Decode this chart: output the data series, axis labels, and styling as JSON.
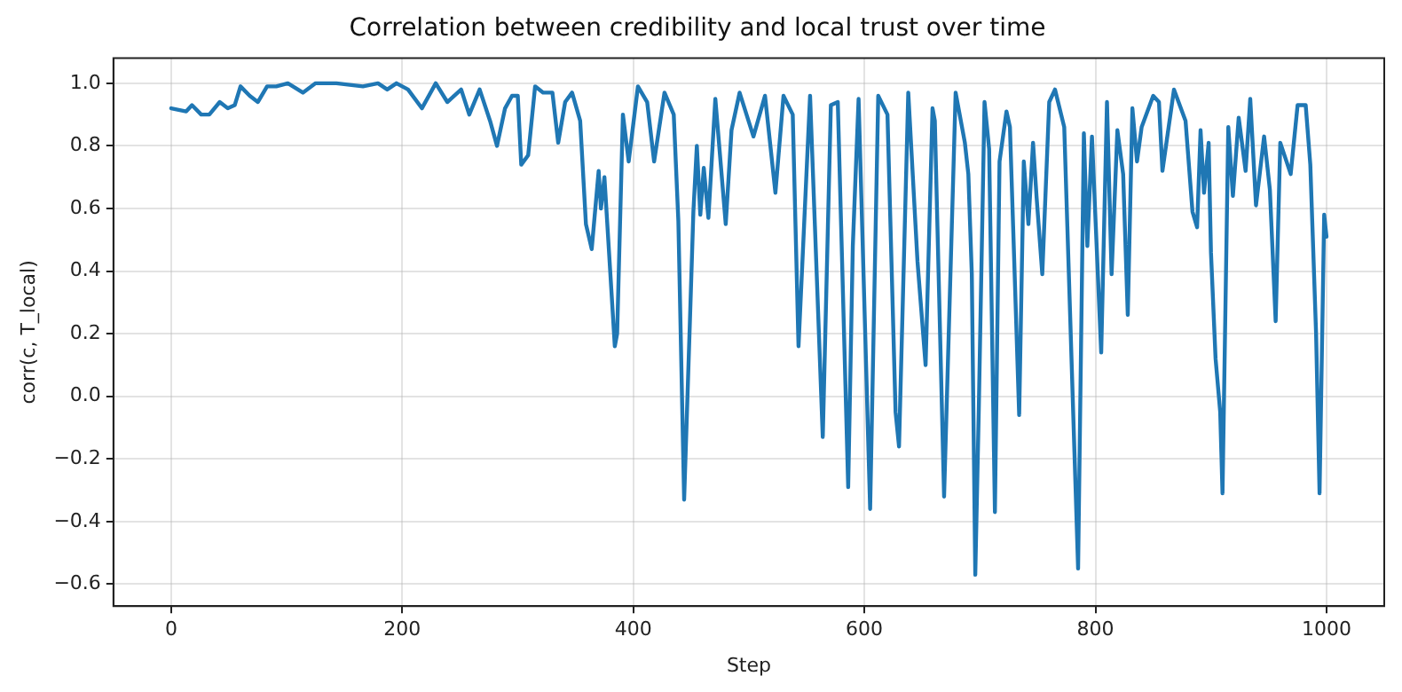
{
  "chart_data": {
    "type": "line",
    "title": "Correlation between credibility and local trust over time",
    "xlabel": "Step",
    "ylabel": "corr(c, T_local)",
    "x": [
      0,
      13,
      18,
      26,
      33,
      42,
      49,
      55,
      60,
      68,
      75,
      83,
      91,
      101,
      114,
      125,
      143,
      166,
      179,
      187,
      195,
      205,
      217,
      229,
      239,
      251,
      258,
      267,
      276,
      282,
      289,
      295,
      300,
      303,
      309,
      315,
      322,
      330,
      335,
      341,
      347,
      354,
      359,
      364,
      370,
      372,
      375,
      384,
      386,
      391,
      396,
      404,
      412,
      418,
      427,
      435,
      439,
      444,
      449,
      452,
      455,
      458,
      461,
      465,
      471,
      480,
      485,
      492,
      504,
      514,
      523,
      530,
      538,
      543,
      553,
      564,
      571,
      577,
      586,
      590,
      595,
      605,
      612,
      620,
      627,
      630,
      638,
      646,
      653,
      659,
      661,
      669,
      679,
      687,
      690,
      693,
      696,
      699,
      704,
      708,
      713,
      717,
      723,
      726,
      734,
      738,
      742,
      746,
      749,
      754,
      760,
      765,
      773,
      785,
      790,
      793,
      797,
      805,
      810,
      814,
      819,
      824,
      828,
      832,
      836,
      840,
      850,
      855,
      858,
      868,
      878,
      884,
      888,
      891,
      894,
      898,
      900,
      904,
      908,
      910,
      915,
      919,
      924,
      930,
      934,
      939,
      946,
      951,
      956,
      960,
      969,
      975,
      982,
      986,
      991,
      994,
      998,
      1000
    ],
    "series": [
      {
        "color": "#1f77b4",
        "values": [
          0.92,
          0.91,
          0.93,
          0.9,
          0.9,
          0.94,
          0.92,
          0.93,
          0.99,
          0.96,
          0.94,
          0.99,
          0.99,
          1.0,
          0.97,
          1.0,
          1.0,
          0.99,
          1.0,
          0.98,
          1.0,
          0.98,
          0.92,
          1.0,
          0.94,
          0.98,
          0.9,
          0.98,
          0.88,
          0.8,
          0.92,
          0.96,
          0.96,
          0.74,
          0.77,
          0.99,
          0.97,
          0.97,
          0.81,
          0.94,
          0.97,
          0.88,
          0.55,
          0.47,
          0.72,
          0.6,
          0.7,
          0.16,
          0.2,
          0.9,
          0.75,
          0.99,
          0.94,
          0.75,
          0.97,
          0.9,
          0.56,
          -0.33,
          0.24,
          0.59,
          0.8,
          0.58,
          0.73,
          0.57,
          0.95,
          0.55,
          0.85,
          0.97,
          0.83,
          0.96,
          0.65,
          0.96,
          0.9,
          0.16,
          0.96,
          -0.13,
          0.93,
          0.94,
          -0.29,
          0.48,
          0.95,
          -0.36,
          0.96,
          0.9,
          -0.05,
          -0.16,
          0.97,
          0.43,
          0.1,
          0.92,
          0.88,
          -0.32,
          0.97,
          0.81,
          0.71,
          0.39,
          -0.57,
          -0.05,
          0.94,
          0.79,
          -0.37,
          0.75,
          0.91,
          0.86,
          -0.06,
          0.75,
          0.55,
          0.81,
          0.64,
          0.39,
          0.94,
          0.98,
          0.86,
          -0.55,
          0.84,
          0.48,
          0.83,
          0.14,
          0.94,
          0.39,
          0.85,
          0.71,
          0.26,
          0.92,
          0.75,
          0.86,
          0.96,
          0.94,
          0.72,
          0.98,
          0.88,
          0.59,
          0.54,
          0.85,
          0.65,
          0.81,
          0.46,
          0.12,
          -0.05,
          -0.31,
          0.86,
          0.64,
          0.89,
          0.72,
          0.95,
          0.61,
          0.83,
          0.66,
          0.24,
          0.81,
          0.71,
          0.93,
          0.93,
          0.74,
          0.2,
          -0.31,
          0.58,
          0.51
        ]
      }
    ],
    "xlim": [
      -50,
      1050
    ],
    "xticks": [
      0,
      200,
      400,
      600,
      800,
      1000
    ],
    "ylim": [
      -0.67,
      1.08
    ],
    "yticks": [
      {
        "value": -0.6,
        "label": "−0.6"
      },
      {
        "value": -0.4,
        "label": "−0.4"
      },
      {
        "value": -0.2,
        "label": "−0.2"
      },
      {
        "value": 0,
        "label": "0.0"
      },
      {
        "value": 0.2,
        "label": "0.2"
      },
      {
        "value": 0.4,
        "label": "0.4"
      },
      {
        "value": 0.6,
        "label": "0.6"
      },
      {
        "value": 0.8,
        "label": "0.8"
      },
      {
        "value": 1.0,
        "label": "1.0"
      }
    ],
    "grid": true,
    "marker": "none",
    "line_style": "solid",
    "legend": false
  }
}
